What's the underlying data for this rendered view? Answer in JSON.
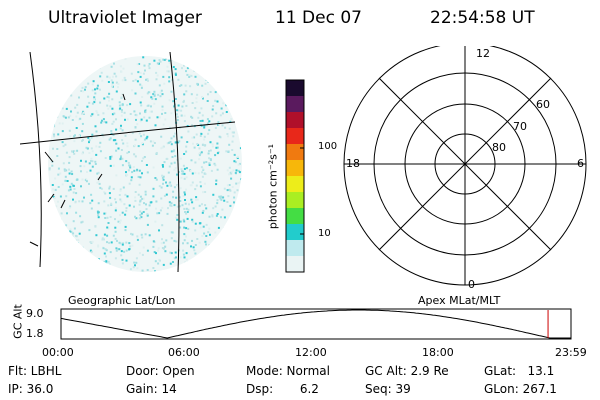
{
  "header": {
    "instrument": "Ultraviolet Imager",
    "date": "11 Dec 07",
    "time": "22:54:58 UT"
  },
  "image_panel": {
    "caption": "Geographic Lat/Lon"
  },
  "color_scale": {
    "unit_label": "photon cm⁻²s⁻¹",
    "ticks": [
      "100",
      "10"
    ],
    "colors": [
      "#1a0a2e",
      "#5a1a5e",
      "#b0102a",
      "#e8281a",
      "#f07a10",
      "#f7b70a",
      "#eded1a",
      "#aaee22",
      "#44dd44",
      "#22cccc",
      "#bfeaee",
      "#eaf4f4"
    ]
  },
  "polar_plot": {
    "caption": "Apex MLat/MLT",
    "mlt_labels": {
      "top": "12",
      "left": "18",
      "right": "6",
      "bottom": "0"
    },
    "lat_labels": [
      "60",
      "70",
      "80"
    ]
  },
  "orbit_plot": {
    "ylabel": "GC Alt",
    "ytick_top": "9.0",
    "ytick_bottom": "1.8",
    "xticks": [
      "00:00",
      "06:00",
      "12:00",
      "18:00",
      "23:59"
    ],
    "marker_color": "#cc0000",
    "marker_time_hours": 22.92
  },
  "info": {
    "flt": "Flt: LBHL",
    "ip": "IP: 36.0",
    "door": "Door: Open",
    "gain": "Gain: 14",
    "mode": "Mode: Normal",
    "dsp": "Dsp:       6.2",
    "gc_alt": "GC Alt: 2.9 Re",
    "seq": "Seq: 39",
    "glat": "GLat:   13.1",
    "glon": "GLon: 267.1"
  }
}
